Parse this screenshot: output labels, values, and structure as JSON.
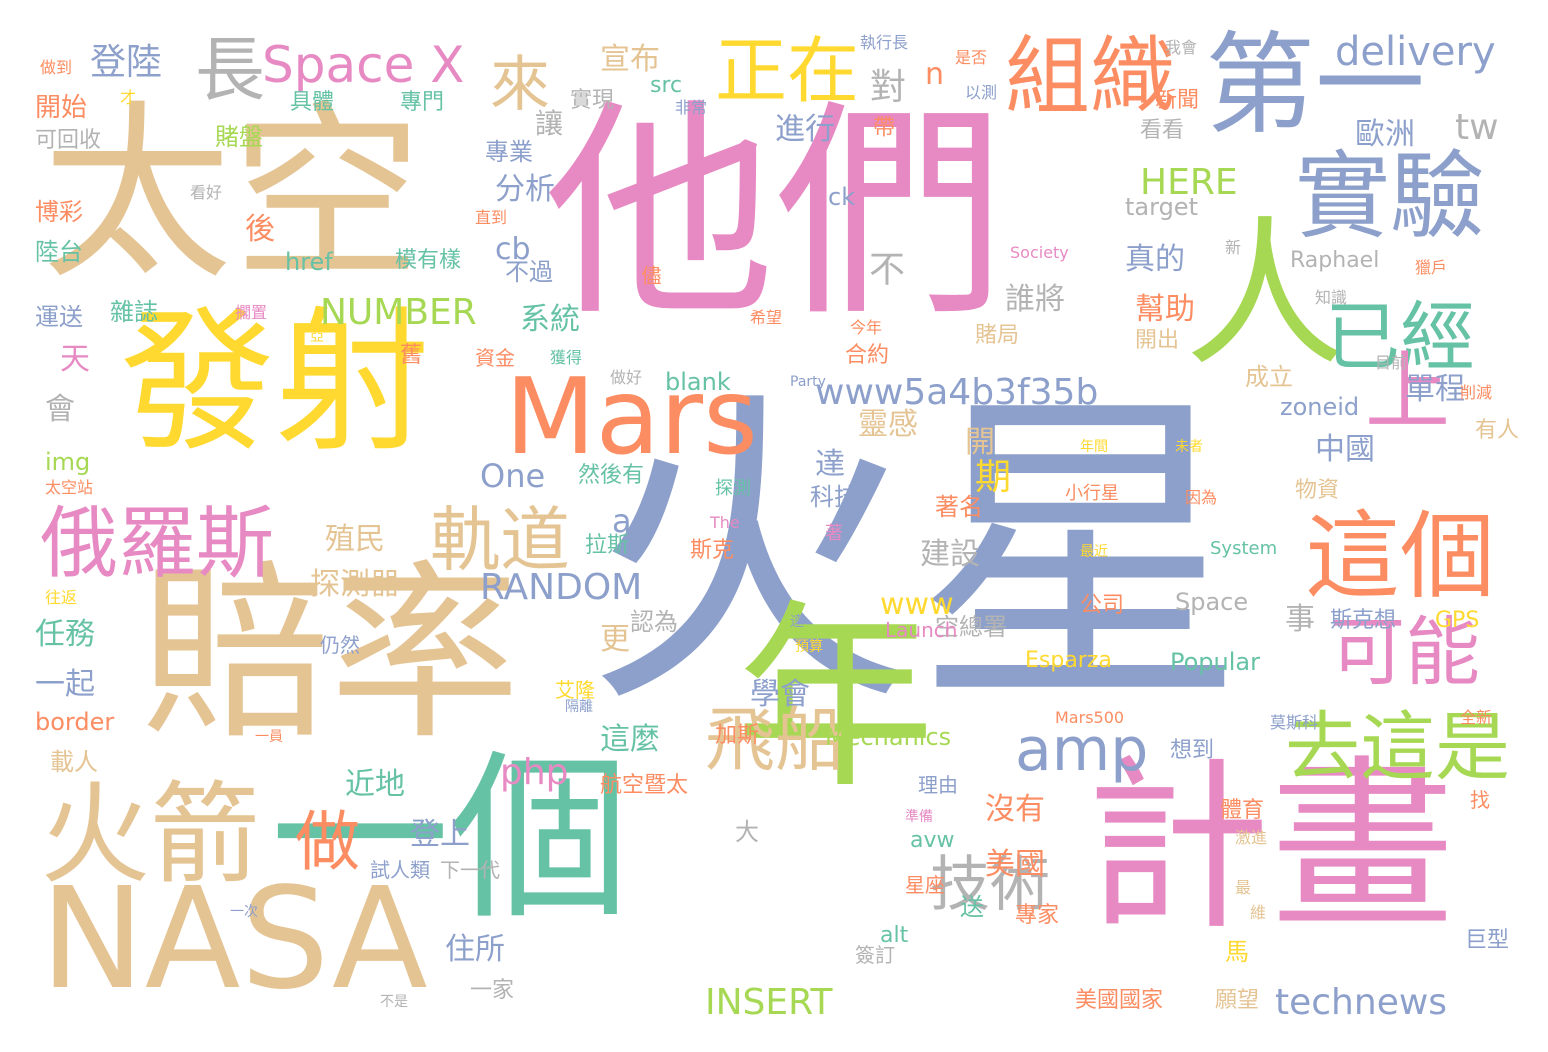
{
  "colors": {
    "tan": "#e5c494",
    "pink": "#e78ac3",
    "blue": "#8da0cb",
    "yellow": "#ffd92f",
    "green": "#a6d854",
    "teal": "#66c2a5",
    "orange": "#fc8d62",
    "gray": "#b3b3b3"
  },
  "words": [
    {
      "text": "火星",
      "color": "blue"
    },
    {
      "text": "他們",
      "color": "pink"
    },
    {
      "text": "太空",
      "color": "tan"
    },
    {
      "text": "賠率",
      "color": "tan"
    },
    {
      "text": "發射",
      "color": "yellow"
    },
    {
      "text": "一個",
      "color": "teal"
    },
    {
      "text": "年",
      "color": "green"
    },
    {
      "text": "計畫",
      "color": "pink"
    },
    {
      "text": "NASA",
      "color": "tan"
    },
    {
      "text": "人",
      "color": "green"
    },
    {
      "text": "第一",
      "color": "blue"
    },
    {
      "text": "實驗",
      "color": "blue"
    },
    {
      "text": "Mars",
      "color": "orange"
    },
    {
      "text": "火箭",
      "color": "tan"
    },
    {
      "text": "這個",
      "color": "orange"
    },
    {
      "text": "俄羅斯",
      "color": "pink"
    },
    {
      "text": "組織",
      "color": "orange"
    },
    {
      "text": "正在",
      "color": "yellow"
    },
    {
      "text": "長",
      "color": "gray"
    },
    {
      "text": "Space X",
      "color": "pink"
    },
    {
      "text": "來",
      "color": "tan"
    },
    {
      "text": "已經",
      "color": "teal"
    },
    {
      "text": "上",
      "color": "pink"
    },
    {
      "text": "可能",
      "color": "pink"
    },
    {
      "text": "去這是",
      "color": "green"
    },
    {
      "text": "amp",
      "color": "blue"
    },
    {
      "text": "軌道",
      "color": "tan"
    },
    {
      "text": "飛船",
      "color": "tan"
    },
    {
      "text": "技術",
      "color": "gray"
    },
    {
      "text": "做",
      "color": "orange"
    },
    {
      "text": "delivery",
      "color": "blue"
    },
    {
      "text": "technews",
      "color": "blue"
    },
    {
      "text": "INSERT",
      "color": "green"
    },
    {
      "text": "RANDOM",
      "color": "blue"
    },
    {
      "text": "www5a4b3f35b",
      "color": "blue"
    },
    {
      "text": "NUMBER",
      "color": "green"
    },
    {
      "text": "HERE",
      "color": "green"
    },
    {
      "text": "登陸",
      "color": "blue"
    },
    {
      "text": "宣布",
      "color": "tan"
    },
    {
      "text": "對",
      "color": "gray"
    },
    {
      "text": "n",
      "color": "orange"
    },
    {
      "text": "進行",
      "color": "blue"
    },
    {
      "text": "歐洲",
      "color": "blue"
    },
    {
      "text": "tw",
      "color": "gray"
    },
    {
      "text": "分析",
      "color": "blue"
    },
    {
      "text": "cb",
      "color": "blue"
    },
    {
      "text": "系統",
      "color": "teal"
    },
    {
      "text": "真的",
      "color": "blue"
    },
    {
      "text": "誰將",
      "color": "gray"
    },
    {
      "text": "幫助",
      "color": "orange"
    },
    {
      "text": "單程",
      "color": "blue"
    },
    {
      "text": "靈感",
      "color": "tan"
    },
    {
      "text": "中國",
      "color": "blue"
    },
    {
      "text": "zoneid",
      "color": "blue"
    },
    {
      "text": "blank",
      "color": "teal"
    },
    {
      "text": "One",
      "color": "blue"
    },
    {
      "text": "殖民",
      "color": "tan"
    },
    {
      "text": "探測器",
      "color": "tan"
    },
    {
      "text": "建設",
      "color": "gray"
    },
    {
      "text": "www",
      "color": "yellow"
    },
    {
      "text": "學會",
      "color": "blue"
    },
    {
      "text": "這麼",
      "color": "teal"
    },
    {
      "text": "php",
      "color": "pink"
    },
    {
      "text": "近地",
      "color": "teal"
    },
    {
      "text": "登上",
      "color": "blue"
    },
    {
      "text": "沒有",
      "color": "orange"
    },
    {
      "text": "美國",
      "color": "orange"
    },
    {
      "text": "住所",
      "color": "blue"
    },
    {
      "text": "任務",
      "color": "teal"
    },
    {
      "text": "一起",
      "color": "blue"
    },
    {
      "text": "border",
      "color": "orange"
    },
    {
      "text": "載人",
      "color": "tan"
    },
    {
      "text": "開始",
      "color": "orange"
    },
    {
      "text": "賭盤",
      "color": "green"
    },
    {
      "text": "後",
      "color": "orange"
    },
    {
      "text": "href",
      "color": "teal"
    },
    {
      "text": "雜誌",
      "color": "teal"
    },
    {
      "text": "運送",
      "color": "blue"
    },
    {
      "text": "陸台",
      "color": "teal"
    },
    {
      "text": "博彩",
      "color": "orange"
    },
    {
      "text": "可回收",
      "color": "gray"
    },
    {
      "text": "天",
      "color": "pink"
    },
    {
      "text": "會",
      "color": "gray"
    },
    {
      "text": "img",
      "color": "green"
    },
    {
      "text": "專業",
      "color": "blue"
    },
    {
      "text": "讓",
      "color": "gray"
    },
    {
      "text": "src",
      "color": "teal"
    },
    {
      "text": "實現",
      "color": "gray"
    },
    {
      "text": "專門",
      "color": "teal"
    },
    {
      "text": "具體",
      "color": "teal"
    },
    {
      "text": "看看",
      "color": "gray"
    },
    {
      "text": "target",
      "color": "gray"
    },
    {
      "text": "Raphael",
      "color": "gray"
    },
    {
      "text": "ck",
      "color": "blue"
    },
    {
      "text": "不過",
      "color": "blue"
    },
    {
      "text": "模有樣",
      "color": "teal"
    },
    {
      "text": "成立",
      "color": "tan"
    },
    {
      "text": "合約",
      "color": "orange"
    },
    {
      "text": "賭局",
      "color": "tan"
    },
    {
      "text": "開出",
      "color": "tan"
    },
    {
      "text": "物資",
      "color": "tan"
    },
    {
      "text": "有人",
      "color": "tan"
    },
    {
      "text": "然後有",
      "color": "teal"
    },
    {
      "text": "科技",
      "color": "blue"
    },
    {
      "text": "著名",
      "color": "orange"
    },
    {
      "text": "拉斯",
      "color": "teal"
    },
    {
      "text": "斯克",
      "color": "orange"
    },
    {
      "text": "認為",
      "color": "gray"
    },
    {
      "text": "空總署",
      "color": "gray"
    },
    {
      "text": "Esparza",
      "color": "yellow"
    },
    {
      "text": "Popular",
      "color": "teal"
    },
    {
      "text": "Space",
      "color": "gray"
    },
    {
      "text": "公司",
      "color": "orange"
    },
    {
      "text": "斯克想",
      "color": "blue"
    },
    {
      "text": "GPS",
      "color": "yellow"
    },
    {
      "text": "Mechanics",
      "color": "green"
    },
    {
      "text": "加斯",
      "color": "orange"
    },
    {
      "text": "航空暨太",
      "color": "orange"
    },
    {
      "text": "想到",
      "color": "blue"
    },
    {
      "text": "體育",
      "color": "orange"
    },
    {
      "text": "avw",
      "color": "teal"
    },
    {
      "text": "專家",
      "color": "orange"
    },
    {
      "text": "alt",
      "color": "teal"
    },
    {
      "text": "一家",
      "color": "gray"
    },
    {
      "text": "美國國家",
      "color": "orange"
    },
    {
      "text": "願望",
      "color": "tan"
    },
    {
      "text": "巨型",
      "color": "blue"
    },
    {
      "text": "做到",
      "color": "orange"
    },
    {
      "text": "執行長",
      "color": "blue"
    },
    {
      "text": "是否",
      "color": "orange"
    },
    {
      "text": "我會",
      "color": "gray"
    },
    {
      "text": "新聞",
      "color": "orange"
    },
    {
      "text": "以測",
      "color": "blue"
    },
    {
      "text": "帶",
      "color": "orange"
    },
    {
      "text": "非常",
      "color": "blue"
    },
    {
      "text": "看好",
      "color": "gray"
    },
    {
      "text": "直到",
      "color": "orange"
    },
    {
      "text": "Society",
      "color": "pink"
    },
    {
      "text": "新",
      "color": "gray"
    },
    {
      "text": "獵戶",
      "color": "orange"
    },
    {
      "text": "知識",
      "color": "gray"
    },
    {
      "text": "擱置",
      "color": "pink"
    },
    {
      "text": "亞",
      "color": "yellow"
    },
    {
      "text": "舊",
      "color": "orange"
    },
    {
      "text": "資金",
      "color": "orange"
    },
    {
      "text": "獲得",
      "color": "teal"
    },
    {
      "text": "做好",
      "color": "gray"
    },
    {
      "text": "Party",
      "color": "blue"
    },
    {
      "text": "目前",
      "color": "gray"
    },
    {
      "text": "削減",
      "color": "orange"
    },
    {
      "text": "年間",
      "color": "yellow"
    },
    {
      "text": "未者",
      "color": "yellow"
    },
    {
      "text": "小行星",
      "color": "orange"
    },
    {
      "text": "因為",
      "color": "orange"
    },
    {
      "text": "探測",
      "color": "teal"
    },
    {
      "text": "太空站",
      "color": "orange"
    },
    {
      "text": "The",
      "color": "pink"
    },
    {
      "text": "著",
      "color": "pink"
    },
    {
      "text": "最近",
      "color": "yellow"
    },
    {
      "text": "System",
      "color": "teal"
    },
    {
      "text": "往返",
      "color": "yellow"
    },
    {
      "text": "遠",
      "color": "blue"
    },
    {
      "text": "Launch",
      "color": "pink"
    },
    {
      "text": "仍然",
      "color": "blue"
    },
    {
      "text": "預算",
      "color": "yellow"
    },
    {
      "text": "艾隆",
      "color": "yellow"
    },
    {
      "text": "隔離",
      "color": "blue"
    },
    {
      "text": "Mars500",
      "color": "orange"
    },
    {
      "text": "莫斯科",
      "color": "blue"
    },
    {
      "text": "全新",
      "color": "orange"
    },
    {
      "text": "一員",
      "color": "orange"
    },
    {
      "text": "理由",
      "color": "blue"
    },
    {
      "text": "準備",
      "color": "pink"
    },
    {
      "text": "激進",
      "color": "tan"
    },
    {
      "text": "找",
      "color": "orange"
    },
    {
      "text": "最",
      "color": "tan"
    },
    {
      "text": "維",
      "color": "tan"
    },
    {
      "text": "大",
      "color": "gray"
    },
    {
      "text": "試人類",
      "color": "blue"
    },
    {
      "text": "下一代",
      "color": "gray"
    },
    {
      "text": "一次",
      "color": "blue"
    },
    {
      "text": "星座",
      "color": "orange"
    },
    {
      "text": "簽訂",
      "color": "gray"
    },
    {
      "text": "不是",
      "color": "gray"
    },
    {
      "text": "達",
      "color": "blue"
    },
    {
      "text": "開",
      "color": "tan"
    },
    {
      "text": "期",
      "color": "yellow"
    },
    {
      "text": "送",
      "color": "teal"
    },
    {
      "text": "事",
      "color": "gray"
    },
    {
      "text": "馬",
      "color": "yellow"
    },
    {
      "text": "更",
      "color": "tan"
    },
    {
      "text": "a",
      "color": "blue"
    },
    {
      "text": "不",
      "color": "gray"
    },
    {
      "text": "今年",
      "color": "orange"
    },
    {
      "text": "希望",
      "color": "orange"
    },
    {
      "text": "儘",
      "color": "orange"
    },
    {
      "text": "才",
      "color": "yellow"
    }
  ]
}
